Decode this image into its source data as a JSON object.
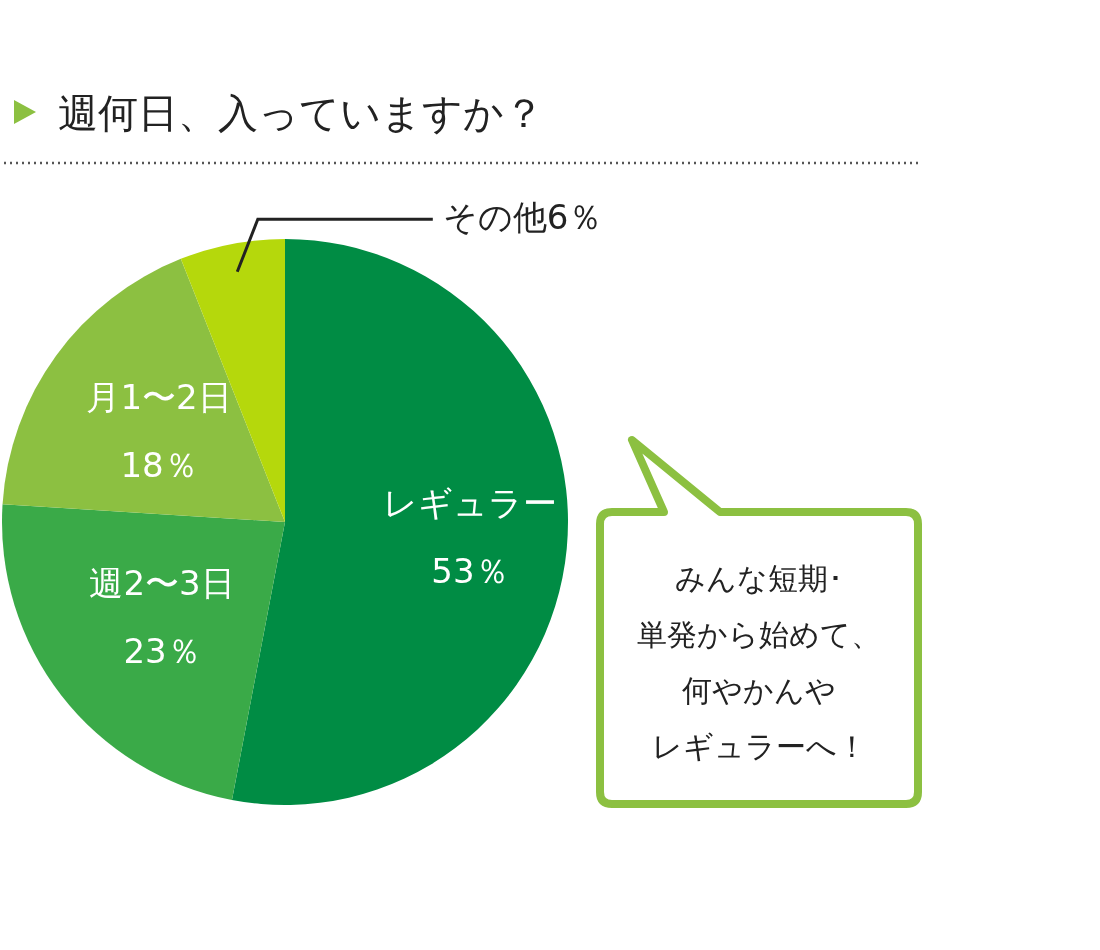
{
  "chart_data": {
    "type": "pie",
    "title": "週何日、入っていますか？",
    "categories": [
      "レギュラー",
      "週2〜3日",
      "月1〜2日",
      "その他"
    ],
    "values": [
      53,
      23,
      18,
      6
    ],
    "value_labels": [
      "53％",
      "23％",
      "18％",
      "6％"
    ],
    "colors": [
      "#008c44",
      "#3aaa48",
      "#8cc041",
      "#b5d80c"
    ],
    "annotations": [
      "みんな短期･",
      "単発から始めて、",
      "何やかんや",
      "レギュラーへ！"
    ]
  }
}
